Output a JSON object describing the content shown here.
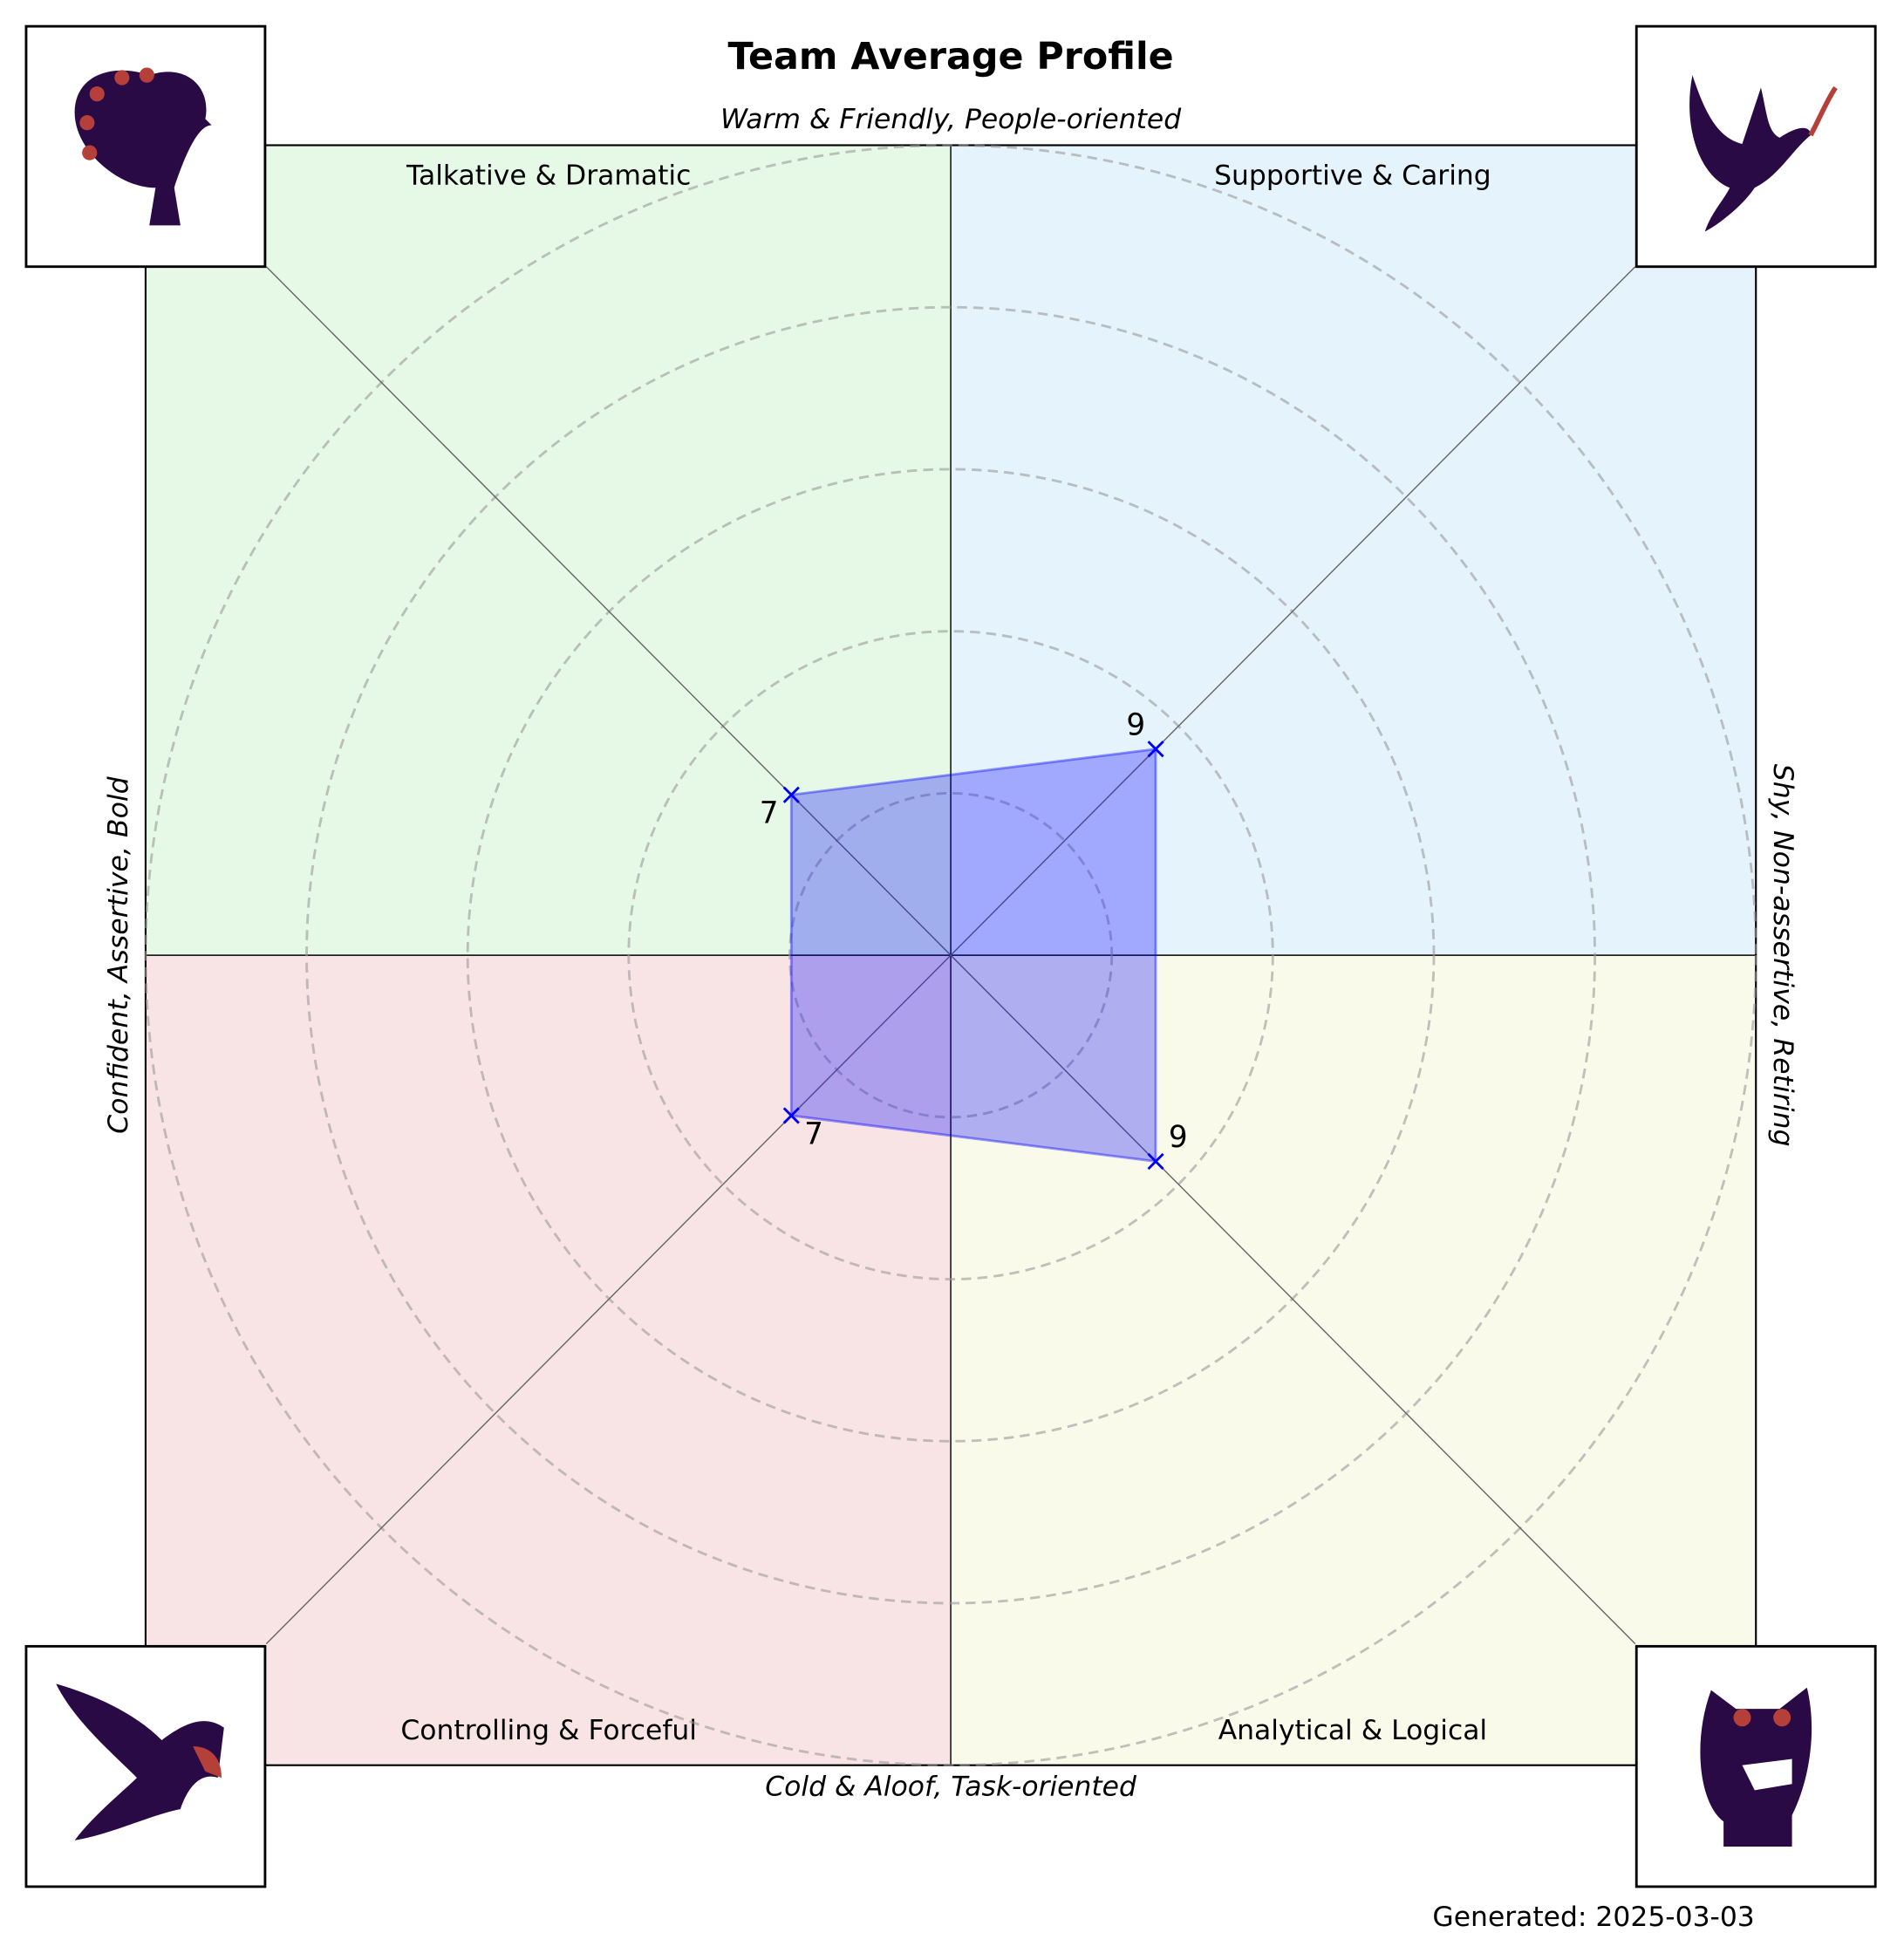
{
  "chart_data": {
    "type": "radar",
    "title": "Team Average Profile",
    "axis_labels": {
      "top": "Warm & Friendly, People-oriented",
      "bottom": "Cold & Aloof, Task-oriented",
      "left": "Confident, Assertive, Bold",
      "right": "Shy, Non-assertive, Retiring"
    },
    "categories": [
      "Talkative & Dramatic",
      "Supportive & Caring",
      "Analytical & Logical",
      "Controlling & Forceful"
    ],
    "quadrant_colors": [
      "#e6f9e6",
      "#e5f3fd",
      "#fafaeb",
      "#f9e4e5"
    ],
    "series": [
      {
        "color": "#0000ff",
        "values": [
          7,
          9,
          9,
          7
        ]
      }
    ],
    "rlim": [
      0,
      25
    ],
    "rticks": [
      5,
      10,
      15,
      20,
      25
    ],
    "grid": true,
    "footer": "Generated: 2025-03-03"
  }
}
